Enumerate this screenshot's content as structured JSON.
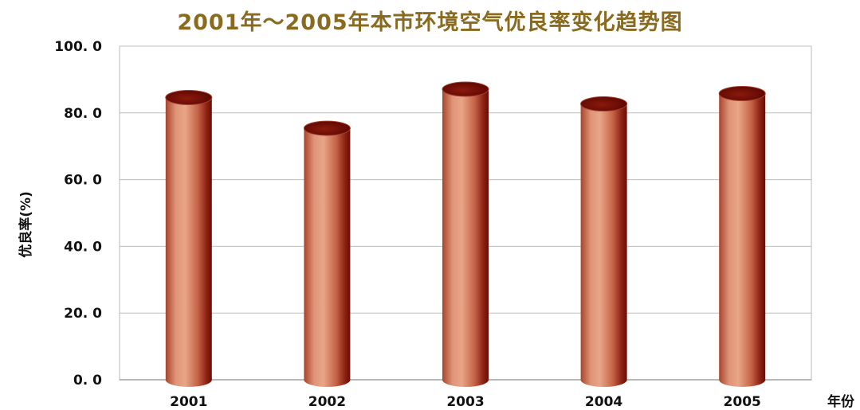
{
  "chart_data": {
    "type": "bar",
    "title": "2001年～2005年本市环境空气优良率变化趋势图",
    "xlabel": "年份",
    "ylabel": "优良率(%)",
    "categories": [
      "2001",
      "2002",
      "2003",
      "2004",
      "2005"
    ],
    "values": [
      84.6,
      75.4,
      87.1,
      82.7,
      85.8
    ],
    "ylim": [
      0,
      100
    ],
    "yticks": [
      "0. 0",
      "20. 0",
      "40. 0",
      "60. 0",
      "80. 0",
      "100. 0"
    ],
    "ytick_values": [
      0,
      20,
      40,
      60,
      80,
      100
    ],
    "grid": true,
    "legend": "none",
    "bar_color": "#c8684a",
    "bar_top_color": "#7a1008"
  }
}
